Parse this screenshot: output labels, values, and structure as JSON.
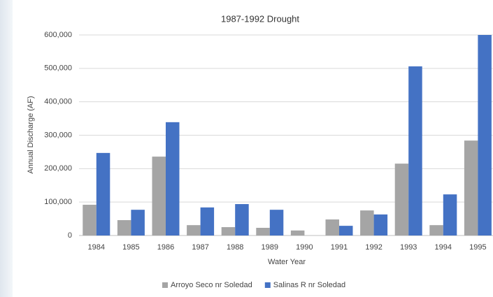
{
  "chart_data": {
    "type": "bar",
    "title": "1987-1992 Drought",
    "x_label": "Water Year",
    "y_label": "Annual Discharge (AF)",
    "categories": [
      "1984",
      "1985",
      "1986",
      "1987",
      "1988",
      "1989",
      "1990",
      "1991",
      "1992",
      "1993",
      "1994",
      "1995"
    ],
    "series": [
      {
        "name": "Arroyo Seco nr Soledad",
        "color": "#a5a5a5",
        "values": [
          92000,
          46000,
          236000,
          31000,
          25000,
          23000,
          15000,
          48000,
          75000,
          215000,
          31000,
          284000
        ]
      },
      {
        "name": "Salinas R nr Soledad",
        "color": "#4472c4",
        "values": [
          247000,
          77000,
          339000,
          84000,
          94000,
          77000,
          0,
          29000,
          63000,
          506000,
          123000,
          600000
        ]
      }
    ],
    "ylim": [
      0,
      600000
    ],
    "yticks": [
      0,
      {
        "value": 100000,
        "label": "100,000"
      },
      {
        "value": 200000,
        "label": "200,000"
      },
      {
        "value": 300000,
        "label": "300,000"
      },
      {
        "value": 400000,
        "label": "400,000"
      },
      {
        "value": 500000,
        "label": "500,000"
      },
      {
        "value": 600000,
        "label": "600,000"
      }
    ],
    "grid": true,
    "legend": "bottom"
  }
}
